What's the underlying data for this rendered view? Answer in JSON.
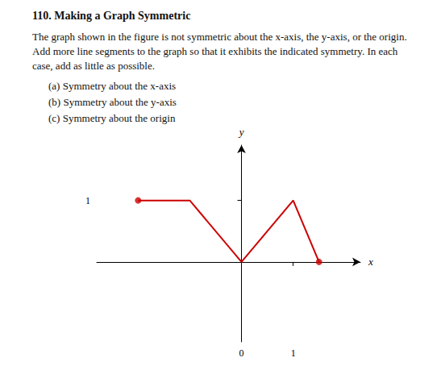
{
  "chart_data": {
    "type": "line",
    "title": "110. Making a Graph Symmetric",
    "subtitle": "The graph shown in the figure is not symmetric about the x-axis, the y-axis, or the origin. Add more line segments to the graph so that it exhibits the indicated symmetry. In each case, add as little as possible.",
    "annotations": [
      "(a) Symmetry about the x-axis",
      "(b) Symmetry about the y-axis",
      "(c) Symmetry about the origin"
    ],
    "x_label": "x",
    "y_label": "y",
    "xlim": [
      -2.8,
      2.3
    ],
    "ylim": [
      -1.3,
      1.9
    ],
    "xticks": [
      0,
      1
    ],
    "yticks": [
      1
    ],
    "grid": false,
    "series": [
      {
        "type": "line",
        "color": "#cc0000",
        "x": [
          -2,
          -1,
          0,
          1,
          1.5
        ],
        "values": [
          1,
          1,
          0,
          1,
          0
        ]
      },
      {
        "type": "scatter",
        "color": "#cc0000",
        "marker": "circle",
        "x": [
          -2,
          1.5
        ],
        "values": [
          1,
          0
        ]
      }
    ]
  }
}
